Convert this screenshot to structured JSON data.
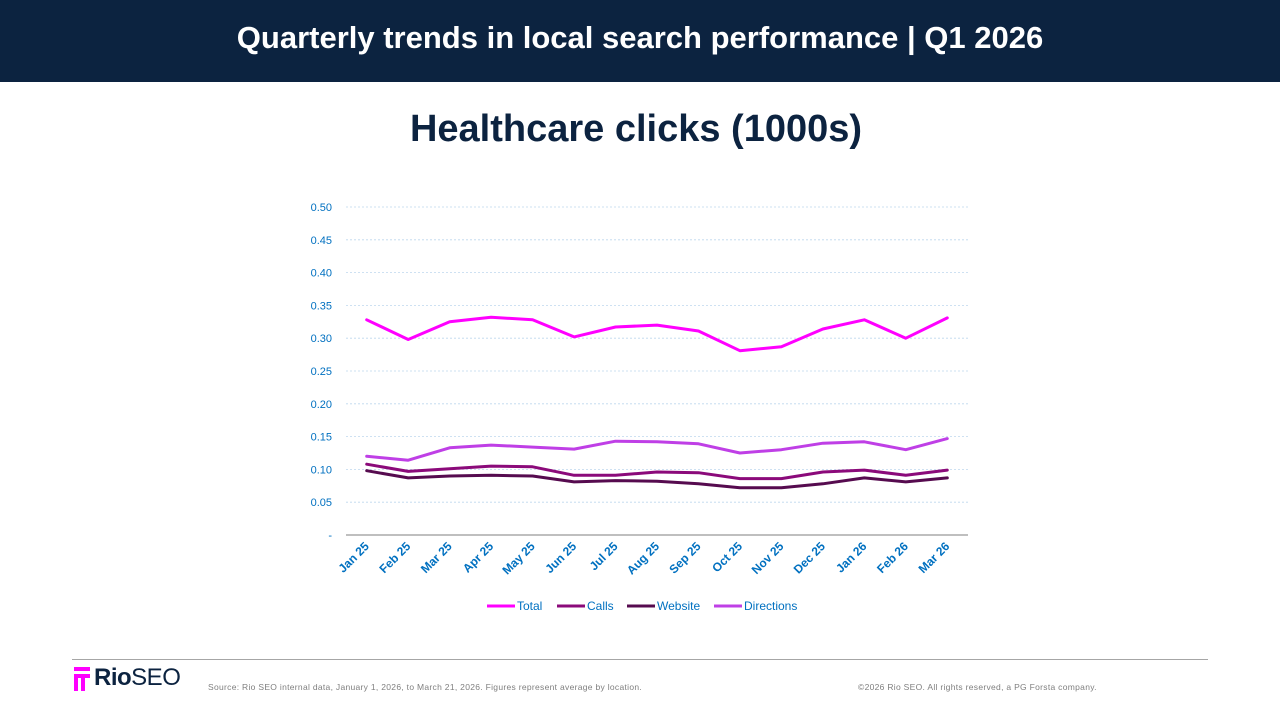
{
  "header": {
    "title": "Quarterly trends in local search performance | Q1 2026"
  },
  "chart_data": {
    "type": "line",
    "title": "Healthcare clicks (1000s)",
    "categories": [
      "Jan 25",
      "Feb 25",
      "Mar 25",
      "Apr 25",
      "May 25",
      "Jun 25",
      "Jul 25",
      "Aug 25",
      "Sep 25",
      "Oct 25",
      "Nov 25",
      "Dec 25",
      "Jan 26",
      "Feb 26",
      "Mar 26"
    ],
    "y_ticks": [
      "-",
      "0.05",
      "0.10",
      "0.15",
      "0.20",
      "0.25",
      "0.30",
      "0.35",
      "0.40",
      "0.45",
      "0.50"
    ],
    "ylim": [
      0,
      0.5
    ],
    "grid": true,
    "legend_position": "bottom",
    "series": [
      {
        "name": "Total",
        "color": "#ff00ff",
        "values": [
          0.328,
          0.298,
          0.325,
          0.332,
          0.328,
          0.302,
          0.317,
          0.32,
          0.311,
          0.281,
          0.287,
          0.314,
          0.328,
          0.3,
          0.331
        ]
      },
      {
        "name": "Calls",
        "color": "#8b0a7a",
        "values": [
          0.108,
          0.097,
          0.101,
          0.105,
          0.104,
          0.091,
          0.091,
          0.096,
          0.095,
          0.086,
          0.086,
          0.096,
          0.099,
          0.091,
          0.099
        ]
      },
      {
        "name": "Website",
        "color": "#560b4f",
        "values": [
          0.098,
          0.087,
          0.09,
          0.091,
          0.09,
          0.081,
          0.083,
          0.082,
          0.078,
          0.072,
          0.072,
          0.078,
          0.087,
          0.081,
          0.087
        ]
      },
      {
        "name": "Directions",
        "color": "#bf3fe6",
        "values": [
          0.12,
          0.114,
          0.133,
          0.137,
          0.134,
          0.131,
          0.143,
          0.142,
          0.139,
          0.125,
          0.13,
          0.14,
          0.142,
          0.13,
          0.147
        ]
      }
    ]
  },
  "footer": {
    "logo_bold": "Rio",
    "logo_light": "SEO",
    "source": "Source: Rio SEO internal data, January 1, 2026, to March 21, 2026. Figures represent average by location.",
    "copyright": "©2026 Rio SEO. All rights reserved, a PG Forsta company."
  },
  "colors": {
    "header_bg": "#0c2340",
    "axis_text": "#0070c0",
    "brand_magenta": "#ff00ff"
  }
}
